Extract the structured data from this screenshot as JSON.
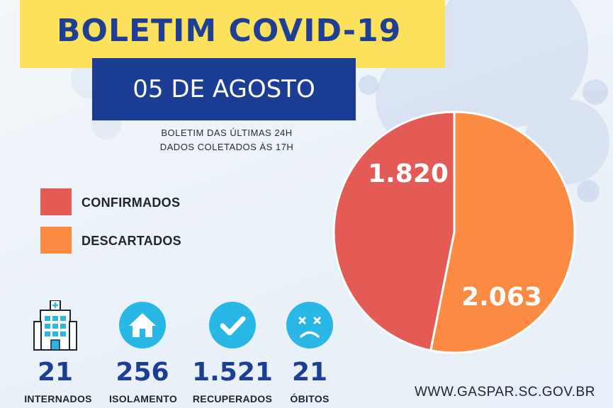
{
  "header": {
    "title": "BOLETIM COVID-19",
    "date": "05 DE AGOSTO",
    "subtitle_line1": "BOLETIM DAS ÚLTIMAS 24H",
    "subtitle_line2": "DADOS COLETADOS ÀS  17H"
  },
  "legend": [
    {
      "label": "CONFIRMADOS",
      "color": "#e45a54"
    },
    {
      "label": "DESCARTADOS",
      "color": "#fb8a43"
    }
  ],
  "chart_data": {
    "type": "pie",
    "slices": [
      {
        "label": "CONFIRMADOS",
        "value": 1820,
        "display": "1.820",
        "color": "#e45a54"
      },
      {
        "label": "DESCARTADOS",
        "value": 2063,
        "display": "2.063",
        "color": "#fb8a43"
      }
    ]
  },
  "stats": [
    {
      "icon": "hospital-icon",
      "value": "21",
      "label": "INTERNADOS"
    },
    {
      "icon": "house-icon",
      "value": "256",
      "label": "ISOLAMENTO"
    },
    {
      "icon": "checkmark-icon",
      "value": "1.521",
      "label": "RECUPERADOS"
    },
    {
      "icon": "sad-face-icon",
      "value": "21",
      "label": "ÓBITOS"
    }
  ],
  "footer": {
    "website": "WWW.GASPAR.SC.GOV.BR"
  },
  "colors": {
    "title_band": "#fbe15c",
    "title_text": "#1f3f95",
    "date_band": "#1b3e94",
    "icon_circle": "#29b8e6",
    "stat_number": "#1c3e93"
  }
}
